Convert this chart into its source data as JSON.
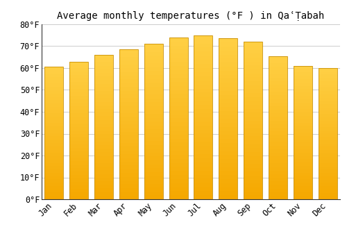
{
  "title": "Average monthly temperatures (°F ) in QaʿṬabah",
  "months": [
    "Jan",
    "Feb",
    "Mar",
    "Apr",
    "May",
    "Jun",
    "Jul",
    "Aug",
    "Sep",
    "Oct",
    "Nov",
    "Dec"
  ],
  "values": [
    60.5,
    63.0,
    66.0,
    68.5,
    71.0,
    74.0,
    75.0,
    73.5,
    72.0,
    65.5,
    61.0,
    60.0
  ],
  "bar_color_bottom": "#F5A800",
  "bar_color_top": "#FFD045",
  "bar_edge_color": "#C8900A",
  "background_color": "#ffffff",
  "grid_color": "#cccccc",
  "ylim": [
    0,
    80
  ],
  "yticks": [
    0,
    10,
    20,
    30,
    40,
    50,
    60,
    70,
    80
  ],
  "ylabel_suffix": "°F",
  "title_fontsize": 10,
  "tick_fontsize": 8.5,
  "font_family": "monospace"
}
